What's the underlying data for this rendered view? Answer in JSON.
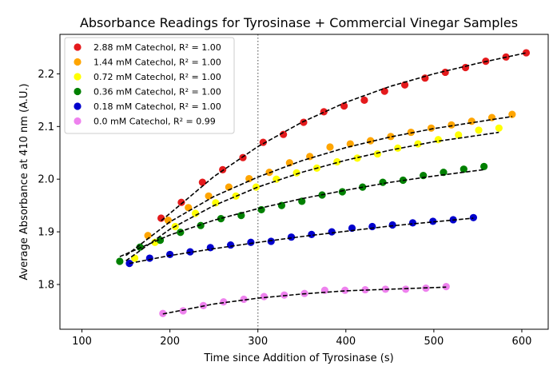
{
  "chart_data": {
    "type": "scatter",
    "title": "Absorbance Readings for Tyrosinase + Commercial Vinegar Samples",
    "xlabel": "Time since Addition of Tyrosinase (s)",
    "ylabel": "Average Absorbance at 410 nm (A.U.)",
    "xlim": [
      75,
      630
    ],
    "ylim": [
      1.715,
      2.275
    ],
    "xticks": [
      100,
      200,
      300,
      400,
      500,
      600
    ],
    "yticks": [
      1.8,
      1.9,
      2.0,
      2.1,
      2.2
    ],
    "xtick_labels": [
      "100",
      "200",
      "300",
      "400",
      "500",
      "600"
    ],
    "ytick_labels": [
      "1.8",
      "1.9",
      "2.0",
      "2.1",
      "2.2"
    ],
    "grid": false,
    "legend": "top-left",
    "vline": {
      "x": 300,
      "color": "#808080",
      "style": "dotted"
    },
    "fit_line_color": "#000000",
    "series": [
      {
        "name": "2.88 mM Catechol, R² = 1.00",
        "color": "#e41a1c",
        "x": [
          190,
          213,
          237,
          260,
          283,
          306,
          329,
          352,
          375,
          398,
          421,
          444,
          467,
          490,
          513,
          536,
          559,
          582,
          605
        ],
        "y": [
          1.926,
          1.956,
          1.994,
          2.018,
          2.041,
          2.07,
          2.085,
          2.108,
          2.128,
          2.139,
          2.15,
          2.167,
          2.179,
          2.192,
          2.203,
          2.212,
          2.224,
          2.232,
          2.24
        ],
        "fit": [
          [
            190,
            1.921
          ],
          [
            250,
            2.005
          ],
          [
            300,
            2.062
          ],
          [
            350,
            2.108
          ],
          [
            400,
            2.146
          ],
          [
            450,
            2.176
          ],
          [
            500,
            2.2
          ],
          [
            550,
            2.22
          ],
          [
            605,
            2.24
          ]
        ]
      },
      {
        "name": "1.44 mM Catechol, R² = 1.00",
        "color": "#ffa500",
        "x": [
          175,
          198,
          221,
          244,
          267,
          290,
          313,
          336,
          359,
          382,
          405,
          428,
          451,
          474,
          497,
          520,
          543,
          566,
          589
        ],
        "y": [
          1.893,
          1.922,
          1.946,
          1.968,
          1.985,
          2.001,
          2.013,
          2.031,
          2.043,
          2.061,
          2.067,
          2.073,
          2.081,
          2.089,
          2.097,
          2.103,
          2.11,
          2.117,
          2.123
        ],
        "fit": [
          [
            150,
            1.855
          ],
          [
            200,
            1.919
          ],
          [
            250,
            1.967
          ],
          [
            300,
            2.004
          ],
          [
            350,
            2.035
          ],
          [
            400,
            2.06
          ],
          [
            450,
            2.08
          ],
          [
            500,
            2.096
          ],
          [
            550,
            2.109
          ],
          [
            589,
            2.119
          ]
        ]
      },
      {
        "name": "0.72 mM Catechol, R² = 1.00",
        "color": "#ffff00",
        "x": [
          160,
          183,
          206,
          229,
          252,
          275,
          298,
          321,
          344,
          367,
          390,
          413,
          436,
          459,
          482,
          505,
          528,
          551,
          574
        ],
        "y": [
          1.85,
          1.88,
          1.91,
          1.935,
          1.955,
          1.968,
          1.985,
          2.0,
          2.012,
          2.021,
          2.033,
          2.04,
          2.048,
          2.059,
          2.067,
          2.075,
          2.084,
          2.093,
          2.097
        ],
        "fit": [
          [
            150,
            1.845
          ],
          [
            200,
            1.905
          ],
          [
            250,
            1.95
          ],
          [
            300,
            1.985
          ],
          [
            350,
            2.013
          ],
          [
            400,
            2.036
          ],
          [
            450,
            2.055
          ],
          [
            500,
            2.071
          ],
          [
            550,
            2.083
          ],
          [
            574,
            2.089
          ]
        ]
      },
      {
        "name": "0.36 mM Catechol, R² = 1.00",
        "color": "#008000",
        "x": [
          143,
          166,
          189,
          212,
          235,
          258,
          281,
          304,
          327,
          350,
          373,
          396,
          419,
          442,
          465,
          488,
          511,
          534,
          557
        ],
        "y": [
          1.844,
          1.871,
          1.884,
          1.899,
          1.912,
          1.925,
          1.931,
          1.942,
          1.95,
          1.958,
          1.97,
          1.976,
          1.985,
          1.994,
          1.998,
          2.007,
          2.013,
          2.019,
          2.024
        ],
        "fit": [
          [
            143,
            1.853
          ],
          [
            200,
            1.894
          ],
          [
            250,
            1.922
          ],
          [
            300,
            1.944
          ],
          [
            350,
            1.963
          ],
          [
            400,
            1.979
          ],
          [
            450,
            1.994
          ],
          [
            500,
            2.006
          ],
          [
            557,
            2.018
          ]
        ]
      },
      {
        "name": "0.18 mM Catechol, R² = 1.00",
        "color": "#0000cd",
        "x": [
          154,
          177,
          200,
          223,
          246,
          269,
          292,
          315,
          338,
          361,
          384,
          407,
          430,
          453,
          476,
          499,
          522,
          545
        ],
        "y": [
          1.84,
          1.85,
          1.857,
          1.862,
          1.87,
          1.875,
          1.88,
          1.882,
          1.89,
          1.895,
          1.9,
          1.907,
          1.91,
          1.913,
          1.917,
          1.92,
          1.923,
          1.927
        ],
        "fit": [
          [
            154,
            1.84
          ],
          [
            200,
            1.855
          ],
          [
            250,
            1.868
          ],
          [
            300,
            1.88
          ],
          [
            350,
            1.891
          ],
          [
            400,
            1.901
          ],
          [
            450,
            1.911
          ],
          [
            500,
            1.919
          ],
          [
            545,
            1.926
          ]
        ]
      },
      {
        "name": "0.0 mM Catechol, R² = 0.99",
        "color": "#ee82ee",
        "x": [
          192,
          215,
          238,
          261,
          284,
          307,
          330,
          353,
          376,
          399,
          422,
          445,
          468,
          491,
          514
        ],
        "y": [
          1.745,
          1.75,
          1.76,
          1.767,
          1.772,
          1.777,
          1.78,
          1.783,
          1.789,
          1.789,
          1.79,
          1.791,
          1.791,
          1.793,
          1.796
        ],
        "fit": [
          [
            192,
            1.744
          ],
          [
            250,
            1.763
          ],
          [
            300,
            1.774
          ],
          [
            350,
            1.782
          ],
          [
            400,
            1.788
          ],
          [
            450,
            1.791
          ],
          [
            514,
            1.795
          ]
        ]
      }
    ]
  }
}
